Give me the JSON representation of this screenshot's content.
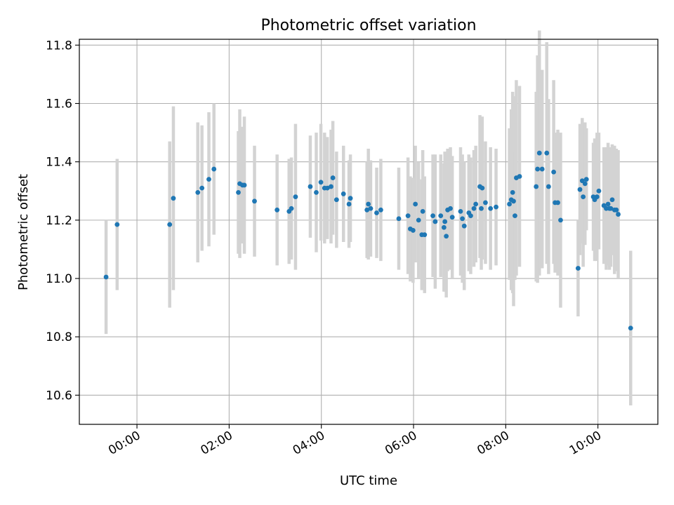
{
  "chart_data": {
    "type": "scatter",
    "title": "Photometric offset variation",
    "xlabel": "UTC time",
    "ylabel": "Photometric offset",
    "x_unit": "hours UTC",
    "xlim": [
      -1.25,
      11.3
    ],
    "ylim": [
      10.5,
      11.82
    ],
    "grid": true,
    "x_ticks": [
      {
        "value": 0,
        "label": "00:00"
      },
      {
        "value": 2,
        "label": "02:00"
      },
      {
        "value": 4,
        "label": "04:00"
      },
      {
        "value": 6,
        "label": "06:00"
      },
      {
        "value": 8,
        "label": "08:00"
      },
      {
        "value": 10,
        "label": "10:00"
      }
    ],
    "y_ticks": [
      {
        "value": 10.6,
        "label": "10.6"
      },
      {
        "value": 10.8,
        "label": "10.8"
      },
      {
        "value": 11.0,
        "label": "11.0"
      },
      {
        "value": 11.2,
        "label": "11.2"
      },
      {
        "value": 11.4,
        "label": "11.4"
      },
      {
        "value": 11.6,
        "label": "11.6"
      },
      {
        "value": 11.8,
        "label": "11.8"
      }
    ],
    "colors": {
      "point": "#1f77b4",
      "errorbar": "#d3d3d3",
      "grid": "#b0b0b0"
    },
    "series": [
      {
        "points": [
          [
            -0.67,
            11.005,
            0.195
          ],
          [
            -0.43,
            11.185,
            0.225
          ],
          [
            0.71,
            11.185,
            0.285
          ],
          [
            0.79,
            11.275,
            0.315
          ],
          [
            1.32,
            11.295,
            0.24
          ],
          [
            1.41,
            11.31,
            0.215
          ],
          [
            1.56,
            11.34,
            0.23
          ],
          [
            1.67,
            11.375,
            0.225
          ],
          [
            2.2,
            11.295,
            0.21
          ],
          [
            2.23,
            11.325,
            0.255
          ],
          [
            2.29,
            11.32,
            0.2
          ],
          [
            2.33,
            11.32,
            0.235
          ],
          [
            2.55,
            11.265,
            0.19
          ],
          [
            3.04,
            11.235,
            0.19
          ],
          [
            3.3,
            11.23,
            0.18
          ],
          [
            3.35,
            11.24,
            0.175
          ],
          [
            3.44,
            11.28,
            0.25
          ],
          [
            3.76,
            11.315,
            0.175
          ],
          [
            3.89,
            11.295,
            0.205
          ],
          [
            3.99,
            11.33,
            0.2
          ],
          [
            4.07,
            11.31,
            0.19
          ],
          [
            4.13,
            11.31,
            0.175
          ],
          [
            4.21,
            11.315,
            0.195
          ],
          [
            4.25,
            11.345,
            0.195
          ],
          [
            4.33,
            11.27,
            0.165
          ],
          [
            4.48,
            11.29,
            0.165
          ],
          [
            4.6,
            11.255,
            0.15
          ],
          [
            4.63,
            11.275,
            0.15
          ],
          [
            4.99,
            11.235,
            0.165
          ],
          [
            5.02,
            11.255,
            0.19
          ],
          [
            5.07,
            11.24,
            0.165
          ],
          [
            5.2,
            11.225,
            0.155
          ],
          [
            5.29,
            11.235,
            0.175
          ],
          [
            5.68,
            11.205,
            0.175
          ],
          [
            5.88,
            11.215,
            0.2
          ],
          [
            5.93,
            11.17,
            0.18
          ],
          [
            5.99,
            11.165,
            0.18
          ],
          [
            6.04,
            11.255,
            0.2
          ],
          [
            6.11,
            11.2,
            0.2
          ],
          [
            6.18,
            11.15,
            0.19
          ],
          [
            6.2,
            11.23,
            0.21
          ],
          [
            6.24,
            11.15,
            0.2
          ],
          [
            6.42,
            11.215,
            0.21
          ],
          [
            6.47,
            11.195,
            0.23
          ],
          [
            6.59,
            11.215,
            0.21
          ],
          [
            6.66,
            11.175,
            0.22
          ],
          [
            6.68,
            11.195,
            0.24
          ],
          [
            6.71,
            11.145,
            0.21
          ],
          [
            6.74,
            11.235,
            0.21
          ],
          [
            6.8,
            11.24,
            0.21
          ],
          [
            6.84,
            11.21,
            0.21
          ],
          [
            7.02,
            11.23,
            0.22
          ],
          [
            7.06,
            11.205,
            0.22
          ],
          [
            7.1,
            11.18,
            0.22
          ],
          [
            7.2,
            11.225,
            0.2
          ],
          [
            7.24,
            11.215,
            0.2
          ],
          [
            7.31,
            11.24,
            0.2
          ],
          [
            7.35,
            11.255,
            0.2
          ],
          [
            7.44,
            11.315,
            0.245
          ],
          [
            7.49,
            11.31,
            0.245
          ],
          [
            7.47,
            11.24,
            0.21
          ],
          [
            7.56,
            11.26,
            0.21
          ],
          [
            7.67,
            11.24,
            0.21
          ],
          [
            7.79,
            11.245,
            0.2
          ],
          [
            8.08,
            11.255,
            0.26
          ],
          [
            8.12,
            11.27,
            0.31
          ],
          [
            8.15,
            11.295,
            0.345
          ],
          [
            8.17,
            11.265,
            0.36
          ],
          [
            8.2,
            11.215,
            0.22
          ],
          [
            8.23,
            11.345,
            0.335
          ],
          [
            8.3,
            11.35,
            0.31
          ],
          [
            8.66,
            11.315,
            0.325
          ],
          [
            8.69,
            11.375,
            0.39
          ],
          [
            8.73,
            11.43,
            0.42
          ],
          [
            8.79,
            11.375,
            0.34
          ],
          [
            8.89,
            11.43,
            0.38
          ],
          [
            8.93,
            11.315,
            0.3
          ],
          [
            9.04,
            11.365,
            0.315
          ],
          [
            9.07,
            11.26,
            0.24
          ],
          [
            9.13,
            11.26,
            0.25
          ],
          [
            9.19,
            11.2,
            0.3
          ],
          [
            9.57,
            11.035,
            0.165
          ],
          [
            9.61,
            11.305,
            0.225
          ],
          [
            9.66,
            11.335,
            0.215
          ],
          [
            9.68,
            11.28,
            0.24
          ],
          [
            9.72,
            11.325,
            0.21
          ],
          [
            9.75,
            11.34,
            0.175
          ],
          [
            9.9,
            11.28,
            0.185
          ],
          [
            9.93,
            11.27,
            0.21
          ],
          [
            9.98,
            11.28,
            0.22
          ],
          [
            10.02,
            11.3,
            0.2
          ],
          [
            10.13,
            11.25,
            0.2
          ],
          [
            10.18,
            11.24,
            0.21
          ],
          [
            10.22,
            11.255,
            0.21
          ],
          [
            10.25,
            11.24,
            0.21
          ],
          [
            10.28,
            11.24,
            0.2
          ],
          [
            10.31,
            11.27,
            0.19
          ],
          [
            10.36,
            11.235,
            0.22
          ],
          [
            10.4,
            11.235,
            0.21
          ],
          [
            10.44,
            11.22,
            0.22
          ],
          [
            10.71,
            10.83,
            0.265
          ]
        ]
      }
    ]
  }
}
